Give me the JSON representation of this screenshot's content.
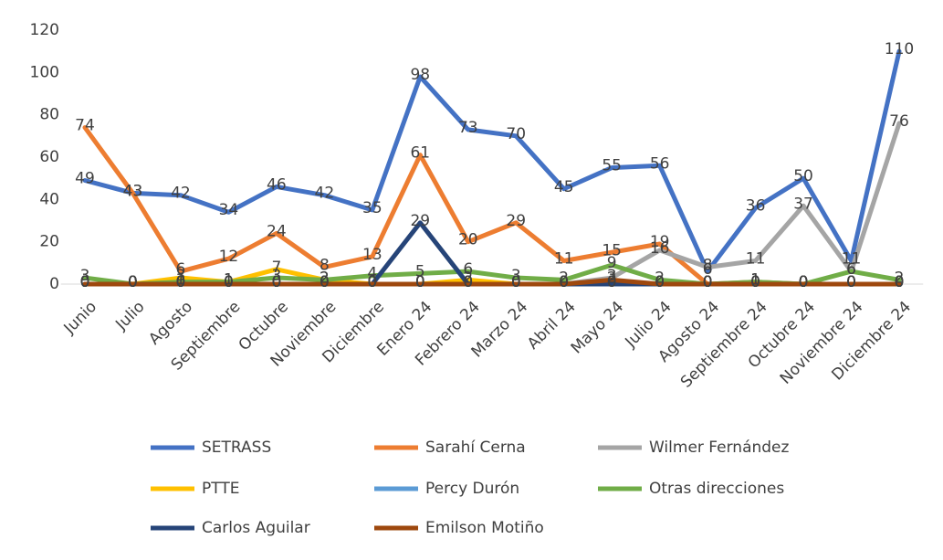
{
  "chart_data": {
    "type": "line",
    "categories": [
      "Junio",
      "Julio",
      "Agosto",
      "Septiembre",
      "Octubre",
      "Noviembre",
      "Diciembre",
      "Enero 24",
      "Febrero 24",
      "Marzo 24",
      "Abril 24",
      "Mayo 24",
      "Julio 24",
      "Agosto 24",
      "Septiembre 24",
      "Octubre 24",
      "Noviembre 24",
      "Diciembre 24"
    ],
    "series": [
      {
        "name": "SETRASS",
        "color": "#4472c4",
        "values": [
          49,
          43,
          42,
          34,
          46,
          42,
          35,
          98,
          73,
          70,
          45,
          55,
          56,
          6,
          36,
          50,
          11,
          110
        ]
      },
      {
        "name": "Sarahí Cerna",
        "color": "#ed7d31",
        "values": [
          74,
          43,
          6,
          12,
          24,
          8,
          13,
          61,
          20,
          29,
          11,
          15,
          19,
          0,
          1,
          0,
          0,
          0
        ]
      },
      {
        "name": "Wilmer Fernández",
        "color": "#a5a5a5",
        "values": [
          0,
          0,
          0,
          0,
          0,
          0,
          0,
          0,
          0,
          0,
          0,
          3,
          16,
          8,
          11,
          37,
          6,
          76
        ]
      },
      {
        "name": "PTTE",
        "color": "#ffc000",
        "values": [
          0,
          0,
          3,
          1,
          7,
          2,
          0,
          0,
          2,
          0,
          0,
          0,
          0,
          0,
          0,
          0,
          0,
          0
        ]
      },
      {
        "name": "Percy Durón",
        "color": "#5b9bd5",
        "values": [
          0,
          0,
          0,
          0,
          0,
          0,
          0,
          0,
          0,
          0,
          0,
          0,
          0,
          0,
          0,
          0,
          0,
          0
        ]
      },
      {
        "name": "Otras direcciones",
        "color": "#70ad47",
        "values": [
          3,
          0,
          1,
          1,
          3,
          2,
          4,
          5,
          6,
          3,
          2,
          9,
          2,
          0,
          1,
          0,
          6,
          2
        ]
      },
      {
        "name": "Carlos Aguilar",
        "color": "#264478",
        "values": [
          0,
          0,
          0,
          0,
          0,
          0,
          0,
          29,
          0,
          0,
          0,
          0,
          0,
          0,
          0,
          0,
          0,
          0
        ]
      },
      {
        "name": "Emilson Motiño",
        "color": "#9e480e",
        "values": [
          0,
          0,
          0,
          0,
          0,
          0,
          0,
          0,
          0,
          0,
          0,
          2,
          0,
          0,
          0,
          0,
          0,
          0
        ]
      }
    ],
    "ylim": [
      0,
      120
    ],
    "yticks": [
      0,
      20,
      40,
      60,
      80,
      100,
      120
    ],
    "grid": false,
    "legend": "bottom"
  }
}
